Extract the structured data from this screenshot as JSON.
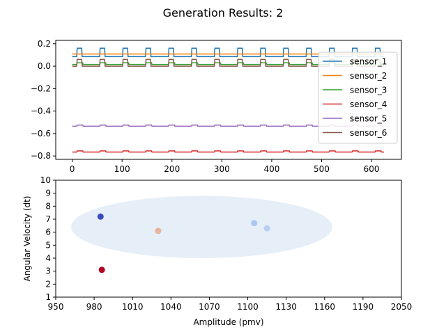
{
  "figure": {
    "title": "Generation Results: 2"
  },
  "chart_data": [
    {
      "type": "line",
      "title": "",
      "xlabel": "",
      "ylabel": "",
      "xlim": [
        -33,
        660
      ],
      "ylim": [
        -0.83,
        0.23
      ],
      "xticks": [
        0,
        100,
        200,
        300,
        400,
        500,
        600
      ],
      "yticks": [
        0.2,
        0.0,
        -0.2,
        -0.4,
        -0.6,
        -0.8
      ],
      "ytick_labels": [
        "0.2",
        "0.0",
        "−0.2",
        "−0.4",
        "−0.6",
        "−0.8"
      ],
      "legend_position": "right",
      "x_range": [
        0,
        625
      ],
      "num_points": 626,
      "spike_period": 46,
      "spike_start": 10,
      "series": [
        {
          "name": "sensor_1",
          "color": "#1f77b4",
          "baseline": 0.085,
          "spike": 0.16,
          "spike_width": 10,
          "shape": "square"
        },
        {
          "name": "sensor_2",
          "color": "#ff7f0e",
          "baseline": 0.108,
          "spike": 0.108,
          "spike_width": 0,
          "shape": "flat"
        },
        {
          "name": "sensor_3",
          "color": "#2ca02c",
          "baseline": 0.015,
          "spike": 0.03,
          "spike_width": 12,
          "shape": "square"
        },
        {
          "name": "sensor_4",
          "color": "#d62728",
          "baseline": -0.765,
          "spike": -0.755,
          "spike_width": 12,
          "shape": "square"
        },
        {
          "name": "sensor_5",
          "color": "#9467bd",
          "baseline": -0.535,
          "spike": -0.525,
          "spike_width": 12,
          "shape": "square"
        },
        {
          "name": "sensor_6",
          "color": "#8c564b",
          "baseline": 0.0,
          "spike": 0.06,
          "spike_width": 10,
          "shape": "square"
        }
      ]
    },
    {
      "type": "scatter",
      "title": "",
      "xlabel": "Amplitude (pmv)",
      "ylabel": "Angular Velocity (dt)",
      "x_tick_labels": [
        "950",
        "980",
        "1010",
        "1040",
        "1070",
        "1100",
        "1130",
        "1160",
        "1190",
        "2050"
      ],
      "y_tick_labels": [
        "1",
        "2",
        "3",
        "4",
        "5",
        "6",
        "7",
        "8",
        "9",
        "10"
      ],
      "xlim_index": [
        0,
        9
      ],
      "ylim": [
        1,
        10
      ],
      "ellipse": {
        "cx_index": 3.8,
        "cy": 6.4,
        "rx_index": 3.4,
        "ry": 2.4,
        "color": "#dce8f5",
        "opacity": 0.7
      },
      "points": [
        {
          "x": 985,
          "y": 7.2,
          "color": "#3b4cc0"
        },
        {
          "x": 986,
          "y": 3.1,
          "color": "#b40426"
        },
        {
          "x": 1030,
          "y": 6.1,
          "color": "#e5b49a"
        },
        {
          "x": 1105,
          "y": 6.7,
          "color": "#a9c6f3"
        },
        {
          "x": 1115,
          "y": 6.3,
          "color": "#b7cff0"
        }
      ]
    }
  ]
}
